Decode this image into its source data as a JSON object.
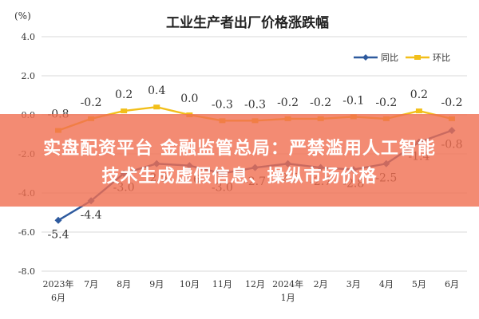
{
  "chart_data": {
    "type": "line",
    "title": "工业生产者出厂价格涨跌幅",
    "ylabel": "(%)",
    "ylim": [
      -8.0,
      4.0
    ],
    "yticks": [
      "4.0",
      "2.0",
      "0.0",
      "-2.0",
      "-4.0",
      "-6.0",
      "-8.0"
    ],
    "categories": [
      "2023年6月",
      "7月",
      "8月",
      "9月",
      "10月",
      "11月",
      "12月",
      "2024年1月",
      "2月",
      "3月",
      "4月",
      "5月",
      "6月"
    ],
    "x_tick_labels": [
      [
        "2023年",
        "6月"
      ],
      [
        "7月"
      ],
      [
        "8月"
      ],
      [
        "9月"
      ],
      [
        "10月"
      ],
      [
        "11月"
      ],
      [
        "12月"
      ],
      [
        "2024年",
        "1月"
      ],
      [
        "2月"
      ],
      [
        "3月"
      ],
      [
        "4月"
      ],
      [
        "5月"
      ],
      [
        "6月"
      ]
    ],
    "legend_position": "top-right",
    "grid": true,
    "series": [
      {
        "name": "同比",
        "color": "#2e5a9e",
        "values": [
          -5.4,
          -4.4,
          -3.0,
          -2.5,
          -2.6,
          -3.0,
          -2.7,
          -2.5,
          -2.7,
          -2.8,
          -2.5,
          -1.4,
          -0.8
        ],
        "labels": [
          "-5.4",
          "-4.4",
          "-3.0",
          "-2.5",
          "-2.6",
          "-3.0",
          "-2.7",
          "-2.5",
          "-2.7",
          "-2.8",
          "-2.5",
          "-1.4",
          "-0.8"
        ]
      },
      {
        "name": "环比",
        "color": "#f2bf1a",
        "values": [
          -0.8,
          -0.2,
          0.2,
          0.4,
          0.0,
          -0.3,
          -0.3,
          -0.2,
          -0.2,
          -0.1,
          -0.2,
          0.2,
          -0.2
        ],
        "labels": [
          "-0.8",
          "-0.2",
          "0.2",
          "0.4",
          "0.0",
          "-0.3",
          "-0.3",
          "-0.2",
          "-0.2",
          "-0.1",
          "-0.2",
          "0.2",
          "-0.2"
        ]
      }
    ]
  },
  "banner": {
    "line1": "实盘配资平台 金融监管总局：严禁滥用人工智能",
    "line2": "技术生成虚假信息、操纵市场价格"
  }
}
